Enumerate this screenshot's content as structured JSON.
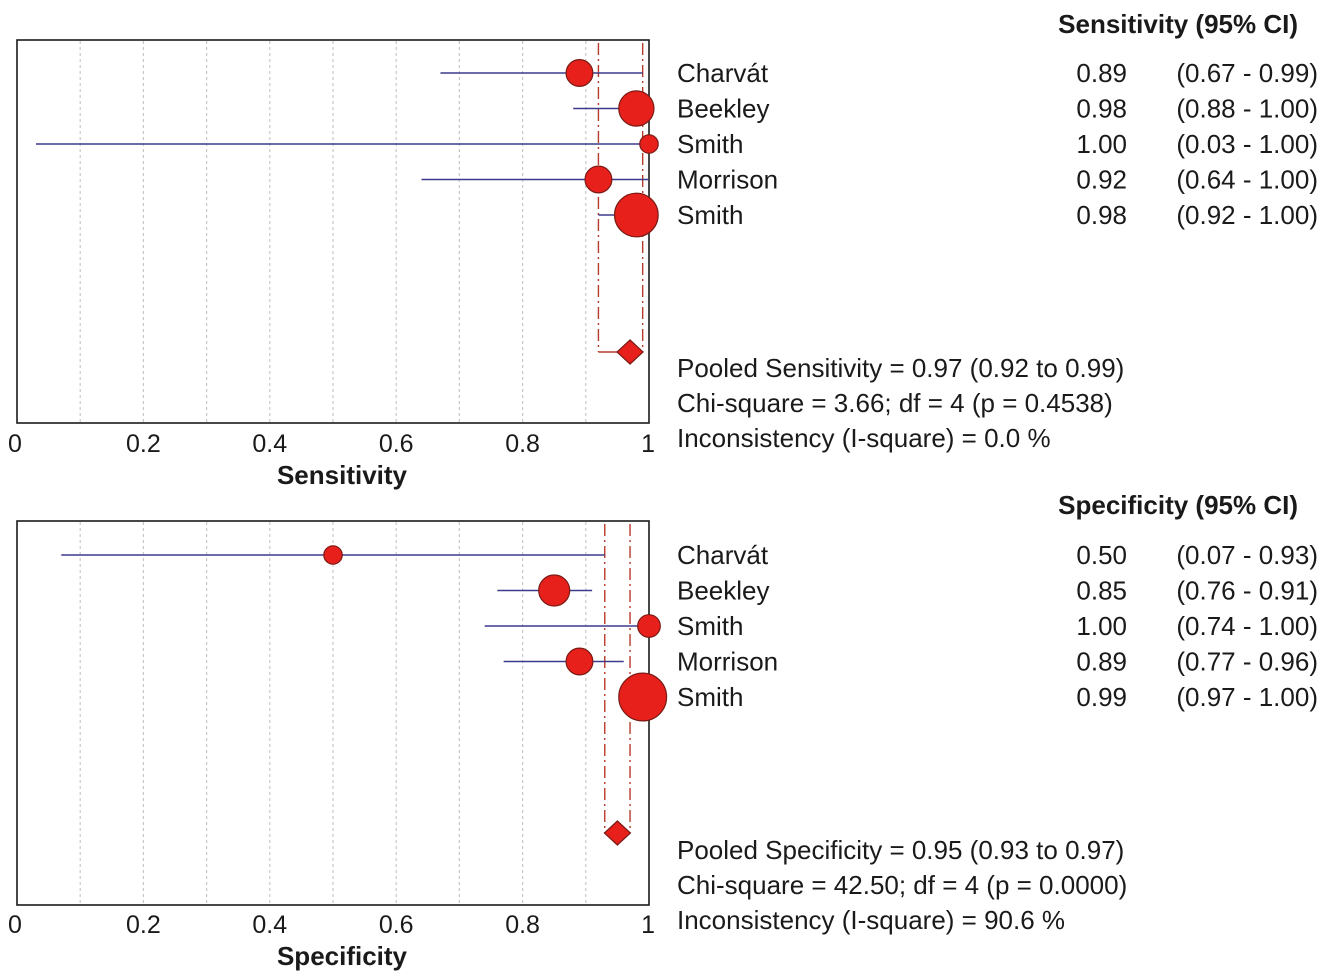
{
  "chart_data": [
    {
      "type": "forest",
      "metric": "Sensitivity",
      "header": "Sensitivity (95% CI)",
      "xlabel": "Sensitivity",
      "xlim": [
        0,
        1
      ],
      "xticks": [
        "0",
        "0.2",
        "0.4",
        "0.6",
        "0.8",
        "1"
      ],
      "grid": true,
      "studies": [
        {
          "name": "Charvát",
          "estimate": 0.89,
          "lower": 0.67,
          "upper": 0.99,
          "value_text": "0.89",
          "ci_text": "(0.67 - 0.99)",
          "weight": 2
        },
        {
          "name": "Beekley",
          "estimate": 0.98,
          "lower": 0.88,
          "upper": 1.0,
          "value_text": "0.98",
          "ci_text": "(0.88 - 1.00)",
          "weight": 3
        },
        {
          "name": "Smith",
          "estimate": 1.0,
          "lower": 0.03,
          "upper": 1.0,
          "value_text": "1.00",
          "ci_text": "(0.03 - 1.00)",
          "weight": 1
        },
        {
          "name": "Morrison",
          "estimate": 0.92,
          "lower": 0.64,
          "upper": 1.0,
          "value_text": "0.92",
          "ci_text": "(0.64 - 1.00)",
          "weight": 2
        },
        {
          "name": "Smith",
          "estimate": 0.98,
          "lower": 0.92,
          "upper": 1.0,
          "value_text": "0.98",
          "ci_text": "(0.92 - 1.00)",
          "weight": 4
        }
      ],
      "pooled": {
        "estimate": 0.97,
        "lower": 0.92,
        "upper": 0.99
      },
      "summary_lines": [
        "Pooled Sensitivity = 0.97 (0.92 to 0.99)",
        "Chi-square = 3.66; df =  4 (p = 0.4538)",
        "Inconsistency (I-square) = 0.0 %"
      ]
    },
    {
      "type": "forest",
      "metric": "Specificity",
      "header": "Specificity (95% CI)",
      "xlabel": "Specificity",
      "xlim": [
        0,
        1
      ],
      "xticks": [
        "0",
        "0.2",
        "0.4",
        "0.6",
        "0.8",
        "1"
      ],
      "grid": true,
      "studies": [
        {
          "name": "Charvát",
          "estimate": 0.5,
          "lower": 0.07,
          "upper": 0.93,
          "value_text": "0.50",
          "ci_text": "(0.07 - 0.93)",
          "weight": 1
        },
        {
          "name": "Beekley",
          "estimate": 0.85,
          "lower": 0.76,
          "upper": 0.91,
          "value_text": "0.85",
          "ci_text": "(0.76 - 0.91)",
          "weight": 2.5
        },
        {
          "name": "Smith",
          "estimate": 1.0,
          "lower": 0.74,
          "upper": 1.0,
          "value_text": "1.00",
          "ci_text": "(0.74 - 1.00)",
          "weight": 1.5
        },
        {
          "name": "Morrison",
          "estimate": 0.89,
          "lower": 0.77,
          "upper": 0.96,
          "value_text": "0.89",
          "ci_text": "(0.77 - 0.96)",
          "weight": 2
        },
        {
          "name": "Smith",
          "estimate": 0.99,
          "lower": 0.97,
          "upper": 1.0,
          "value_text": "0.99",
          "ci_text": "(0.97 - 1.00)",
          "weight": 4.5
        }
      ],
      "pooled": {
        "estimate": 0.95,
        "lower": 0.93,
        "upper": 0.97
      },
      "summary_lines": [
        "Pooled Specificity = 0.95 (0.93 to 0.97)",
        "Chi-square = 42.50; df =  4 (p = 0.0000)",
        "Inconsistency (I-square) = 90.6 %"
      ]
    }
  ],
  "colors": {
    "marker_fill": "#e8201c",
    "marker_stroke": "#7a1a14",
    "ci_line": "#3c3c8c",
    "pooled_line": "#b83a2a",
    "grid": "#c8c8c8",
    "frame": "#1a1a1a",
    "text": "#1a1a1a"
  }
}
